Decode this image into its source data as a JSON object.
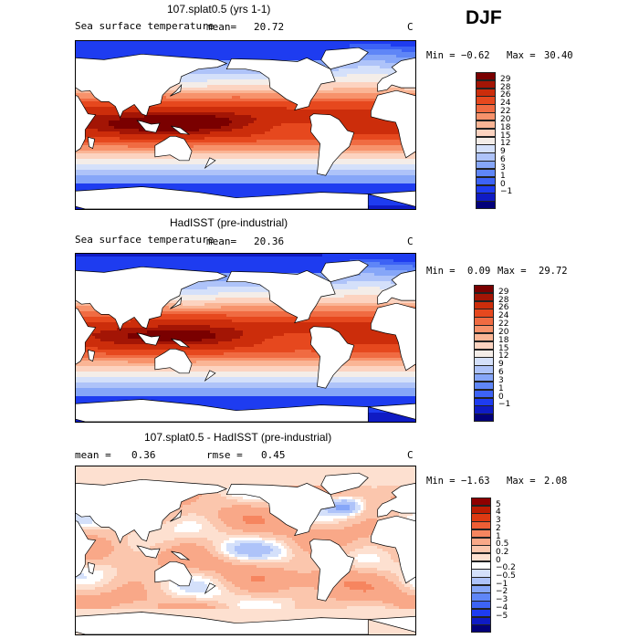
{
  "season": "DJF",
  "colors": {
    "abs_scale": [
      "#03007a",
      "#0f1bc4",
      "#1e3cf0",
      "#3d63f5",
      "#5f86f7",
      "#86a6f8",
      "#aec3f9",
      "#d4e0fa",
      "#f4ede8",
      "#fcd3c0",
      "#fab595",
      "#f7926b",
      "#f06b42",
      "#e6481e",
      "#cc2d0b",
      "#a31505",
      "#7a0000"
    ],
    "diff_scale": [
      "#03007a",
      "#0f1bc4",
      "#1e3cf0",
      "#3d63f5",
      "#5f86f7",
      "#86a6f8",
      "#aec3f9",
      "#d4e0fa",
      "#ffffff",
      "#fde0d0",
      "#fbc6ad",
      "#f9a888",
      "#f6855f",
      "#ee5e35",
      "#de3a12",
      "#bd1c02",
      "#8e0000"
    ],
    "land": "#ffffff",
    "coast": "#000000"
  },
  "panels": [
    {
      "title": "107.splat0.5 (yrs 1-1)",
      "field_label": "Sea surface temperature",
      "mean_label": "mean=",
      "mean_value": "20.72",
      "units": "C",
      "min_label": "Min =",
      "min_value": "−0.62",
      "max_label": "Max =",
      "max_value": "30.40",
      "scale": "abs",
      "levels": [
        "29",
        "28",
        "26",
        "24",
        "22",
        "20",
        "18",
        "15",
        "12",
        "9",
        "6",
        "3",
        "1",
        "0",
        "−1"
      ]
    },
    {
      "title": "HadISST (pre-industrial)",
      "field_label": "Sea surface temperature",
      "mean_label": "mean=",
      "mean_value": "20.36",
      "units": "C",
      "min_label": "Min =",
      "min_value": "0.09",
      "max_label": "Max =",
      "max_value": "29.72",
      "scale": "abs",
      "levels": [
        "29",
        "28",
        "26",
        "24",
        "22",
        "20",
        "18",
        "15",
        "12",
        "9",
        "6",
        "3",
        "1",
        "0",
        "−1"
      ]
    },
    {
      "title": "107.splat0.5 - HadISST (pre-industrial)",
      "mean_label": "mean =",
      "mean_value": "0.36",
      "rmse_label": "rmse =",
      "rmse_value": "0.45",
      "units": "C",
      "min_label": "Min =",
      "min_value": "−1.63",
      "max_label": "Max =",
      "max_value": "2.08",
      "scale": "diff",
      "levels": [
        "5",
        "4",
        "3",
        "2",
        "1",
        "0.5",
        "0.2",
        "0",
        "−0.2",
        "−0.5",
        "−1",
        "−2",
        "−3",
        "−4",
        "−5"
      ]
    }
  ],
  "chart_data": [
    {
      "type": "heatmap",
      "title": "107.splat0.5 (yrs 1-1)",
      "variable": "Sea surface temperature",
      "units": "C",
      "mean": 20.72,
      "min": -0.62,
      "max": 30.4,
      "contour_levels": [
        -1,
        0,
        1,
        3,
        6,
        9,
        12,
        15,
        18,
        20,
        22,
        24,
        26,
        28,
        29
      ]
    },
    {
      "type": "heatmap",
      "title": "HadISST (pre-industrial)",
      "variable": "Sea surface temperature",
      "units": "C",
      "mean": 20.36,
      "min": 0.09,
      "max": 29.72,
      "contour_levels": [
        -1,
        0,
        1,
        3,
        6,
        9,
        12,
        15,
        18,
        20,
        22,
        24,
        26,
        28,
        29
      ]
    },
    {
      "type": "heatmap",
      "title": "107.splat0.5 - HadISST (pre-industrial)",
      "units": "C",
      "mean": 0.36,
      "rmse": 0.45,
      "min": -1.63,
      "max": 2.08,
      "contour_levels": [
        -5,
        -4,
        -3,
        -2,
        -1,
        -0.5,
        -0.2,
        0,
        0.2,
        0.5,
        1,
        2,
        3,
        4,
        5
      ]
    }
  ]
}
